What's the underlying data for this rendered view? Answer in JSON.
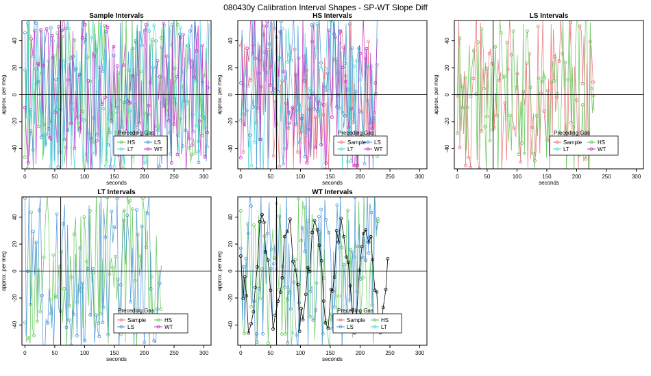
{
  "figure_title": "080430y   Calibration Interval Shapes - SP-WT Slope Diff",
  "colors": {
    "Sample": "#e8686f",
    "HS": "#59c44e",
    "LS": "#3d8fd6",
    "LT": "#3ed6d2",
    "WT": "#c626c4",
    "WT_black": "#000000"
  },
  "chart_data": [
    {
      "type": "line",
      "title": "Sample Intervals",
      "xlabel": "seconds",
      "ylabel": "approx. per meg",
      "xlim": [
        -5,
        312
      ],
      "ylim": [
        -55,
        55
      ],
      "xticks": [
        0,
        50,
        100,
        150,
        200,
        250,
        300
      ],
      "yticks": [
        -40,
        -20,
        0,
        20,
        40
      ],
      "vline": 60,
      "hline": 0,
      "legend": {
        "title": "Preceding Gas",
        "position": "bottom-center",
        "entries": [
          "HS",
          "LS",
          "LT",
          "WT"
        ]
      },
      "series": [
        {
          "name": "HS",
          "color_key": "HS",
          "x_max": 310,
          "seed": 11
        },
        {
          "name": "LS",
          "color_key": "LS",
          "x_max": 310,
          "seed": 12
        },
        {
          "name": "LT",
          "color_key": "LT",
          "x_max": 310,
          "seed": 13
        },
        {
          "name": "WT",
          "color_key": "WT",
          "x_max": 310,
          "seed": 14
        }
      ]
    },
    {
      "type": "line",
      "title": "HS Intervals",
      "xlabel": "seconds",
      "ylabel": "approx. per meg",
      "xlim": [
        -5,
        312
      ],
      "ylim": [
        -55,
        55
      ],
      "xticks": [
        0,
        50,
        100,
        150,
        200,
        250,
        300
      ],
      "yticks": [
        -40,
        -20,
        0,
        20,
        40
      ],
      "vline": 60,
      "hline": 0,
      "legend": {
        "title": "Preceding Gas",
        "position": "bottom-right",
        "entries": [
          "Sample",
          "LS",
          "LT",
          "WT"
        ]
      },
      "series": [
        {
          "name": "Sample",
          "color_key": "Sample",
          "x_max": 230,
          "seed": 21
        },
        {
          "name": "LS",
          "color_key": "LS",
          "x_max": 230,
          "seed": 22
        },
        {
          "name": "LT",
          "color_key": "LT",
          "x_max": 230,
          "seed": 23
        },
        {
          "name": "WT",
          "color_key": "WT",
          "x_max": 230,
          "seed": 24
        }
      ]
    },
    {
      "type": "line",
      "title": "LS Intervals",
      "xlabel": "seconds",
      "ylabel": "approx. per meg",
      "xlim": [
        -5,
        312
      ],
      "ylim": [
        -55,
        55
      ],
      "xticks": [
        0,
        50,
        100,
        150,
        200,
        250,
        300
      ],
      "yticks": [
        -40,
        -20,
        0,
        20,
        40
      ],
      "vline": 60,
      "hline": 0,
      "legend": {
        "title": "Preceding Gas",
        "position": "bottom-right",
        "entries": [
          "Sample",
          "HS",
          "LT",
          "WT"
        ]
      },
      "series": [
        {
          "name": "Sample",
          "color_key": "Sample",
          "x_max": 230,
          "seed": 31
        },
        {
          "name": "HS",
          "color_key": "HS",
          "x_max": 230,
          "seed": 32
        }
      ]
    },
    {
      "type": "line",
      "title": "LT Intervals",
      "xlabel": "seconds",
      "ylabel": "approx. per meg",
      "xlim": [
        -5,
        312
      ],
      "ylim": [
        -55,
        55
      ],
      "xticks": [
        0,
        50,
        100,
        150,
        200,
        250,
        300
      ],
      "yticks": [
        -40,
        -20,
        0,
        20,
        40
      ],
      "vline": 60,
      "hline": 0,
      "legend": {
        "title": "Preceding Gas",
        "position": "bottom-center",
        "entries": [
          "Sample",
          "HS",
          "LS",
          "WT"
        ]
      },
      "series": [
        {
          "name": "HS",
          "color_key": "HS",
          "x_max": 230,
          "seed": 41
        },
        {
          "name": "LS",
          "color_key": "LS",
          "x_max": 230,
          "seed": 42
        }
      ]
    },
    {
      "type": "line",
      "title": "WT Intervals",
      "xlabel": "seconds",
      "ylabel": "approx. per meg",
      "xlim": [
        -5,
        312
      ],
      "ylim": [
        -55,
        55
      ],
      "xticks": [
        0,
        50,
        100,
        150,
        200,
        250,
        300
      ],
      "yticks": [
        -40,
        -20,
        0,
        20,
        40
      ],
      "vline": 60,
      "hline": 0,
      "legend": {
        "title": "Preceding Gas",
        "position": "bottom-right",
        "entries": [
          "Sample",
          "HS",
          "LS",
          "LT"
        ]
      },
      "series": [
        {
          "name": "HS",
          "color_key": "HS",
          "x_max": 230,
          "seed": 51
        },
        {
          "name": "LS",
          "color_key": "LS",
          "x_max": 230,
          "seed": 52
        },
        {
          "name": "WT",
          "color_key": "WT_black",
          "x_max": 250,
          "seed": 53
        }
      ]
    }
  ]
}
